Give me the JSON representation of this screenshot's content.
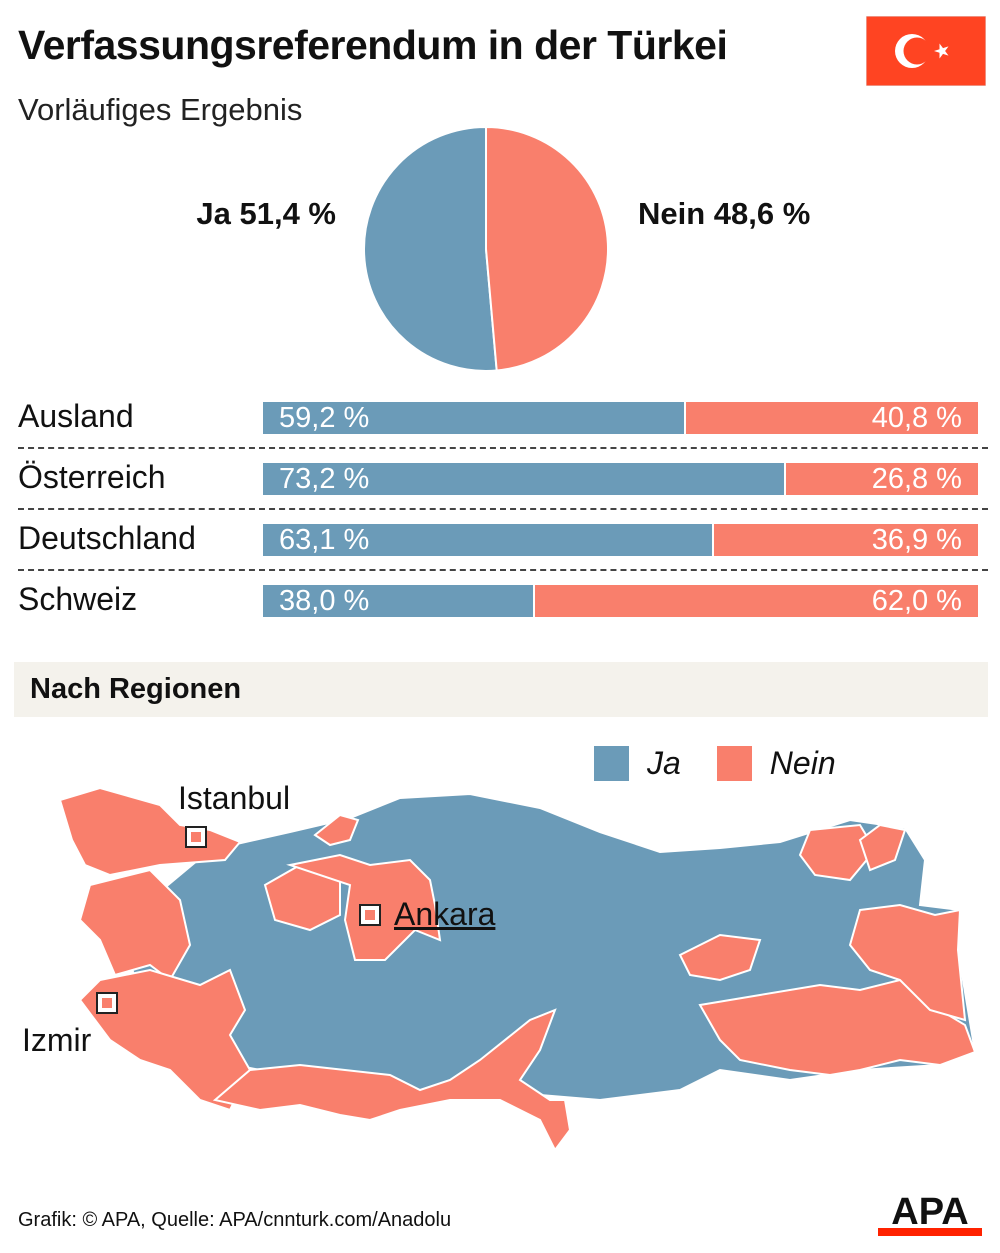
{
  "header": {
    "title": "Verfassungsreferendum in der Türkei",
    "subtitle": "Vorläufiges Ergebnis"
  },
  "colors": {
    "ja": "#6b9bb8",
    "nein": "#f97f6c",
    "flag_red": "#ff4422",
    "section_bg": "#f4f2ec"
  },
  "chart_data": [
    {
      "type": "pie",
      "title": "",
      "slices": [
        {
          "name": "Ja",
          "value": 51.4,
          "label": "Ja 51,4 %"
        },
        {
          "name": "Nein",
          "value": 48.6,
          "label": "Nein 48,6 %"
        }
      ]
    },
    {
      "type": "bar",
      "stacked": true,
      "orientation": "horizontal",
      "categories": [
        "Ausland",
        "Österreich",
        "Deutschland",
        "Schweiz"
      ],
      "series": [
        {
          "name": "Ja",
          "values": [
            59.2,
            73.2,
            63.1,
            38.0
          ],
          "labels": [
            "59,2 %",
            "73,2 %",
            "63,1 %",
            "38,0 %"
          ]
        },
        {
          "name": "Nein",
          "values": [
            40.8,
            26.8,
            36.9,
            62.0
          ],
          "labels": [
            "40,8 %",
            "26,8 %",
            "36,9 %",
            "62,0 %"
          ]
        }
      ],
      "xlim": [
        0,
        100
      ]
    }
  ],
  "regions": {
    "title": "Nach Regionen",
    "legend": [
      {
        "name": "Ja",
        "label": "Ja"
      },
      {
        "name": "Nein",
        "label": "Nein"
      }
    ],
    "cities": {
      "istanbul": "Istanbul",
      "ankara": "Ankara",
      "izmir": "Izmir"
    }
  },
  "footer": {
    "credit": "Grafik: © APA, Quelle: APA/cnnturk.com/Anadolu",
    "logo": "APA"
  }
}
